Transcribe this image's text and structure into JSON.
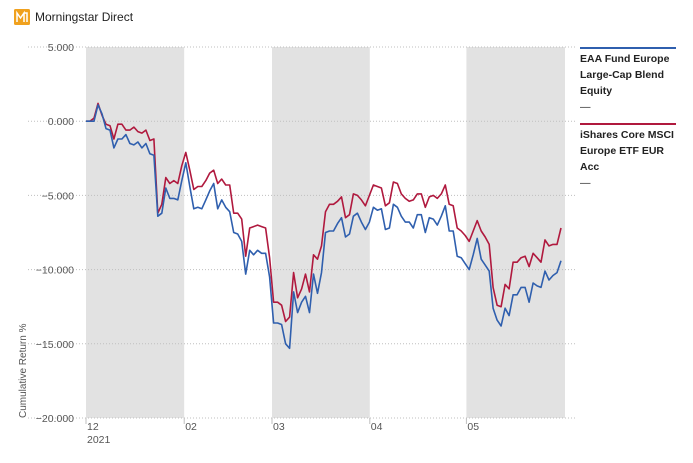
{
  "app": {
    "brand": "Morningstar Direct"
  },
  "colors": {
    "brand_orange": "#f0a11e",
    "series_fund": "#2f5fae",
    "series_etf": "#b0193e",
    "band": "#e2e2e2",
    "grid": "#bfbfbf",
    "text": "#222222",
    "axis_text": "#555555"
  },
  "chart_data": {
    "type": "line",
    "title": "",
    "xlabel": "",
    "ylabel": "Cumulative Return %",
    "ylim": [
      -20,
      5
    ],
    "yticks": [
      5,
      0,
      -5,
      -10,
      -15,
      -20
    ],
    "ytick_labels": [
      "5.000",
      "0.000",
      "−5.000",
      "−10.000",
      "−15.000",
      "−20.000"
    ],
    "xticks": [
      {
        "label": "12",
        "sublabel": "2021",
        "x": 0
      },
      {
        "label": "02",
        "sublabel": "",
        "x": 24.6
      },
      {
        "label": "03",
        "sublabel": "",
        "x": 46.6
      },
      {
        "label": "04",
        "sublabel": "",
        "x": 71.1
      },
      {
        "label": "05",
        "sublabel": "",
        "x": 95.3
      }
    ],
    "xlim": [
      0,
      120
    ],
    "shaded_bands": [
      [
        0,
        24.6
      ],
      [
        46.6,
        71.1
      ],
      [
        95.3,
        120
      ]
    ],
    "legend_position": "right",
    "series": [
      {
        "name": "EAA Fund Europe Large-Cap Blend Equity",
        "color": "#2f5fae",
        "legend_value": "—",
        "x": [
          0,
          1,
          2,
          3,
          4,
          5,
          6,
          7,
          8,
          9,
          10,
          11,
          12,
          13,
          14,
          15,
          16,
          17,
          18,
          19,
          20,
          21,
          22,
          23,
          24,
          25,
          26,
          27,
          28,
          29,
          30,
          31,
          32,
          33,
          34,
          35,
          36,
          37,
          38,
          39,
          40,
          41,
          42,
          43,
          44,
          45,
          46,
          47,
          48,
          49,
          50,
          51,
          52,
          53,
          54,
          55,
          56,
          57,
          58,
          59,
          60,
          61,
          62,
          63,
          64,
          65,
          66,
          67,
          68,
          69,
          70,
          71,
          72,
          73,
          74,
          75,
          76,
          77,
          78,
          79,
          80,
          81,
          82,
          83,
          84,
          85,
          86,
          87,
          88,
          89,
          90,
          91,
          92,
          93,
          94,
          95,
          96,
          97,
          98,
          99,
          100,
          101,
          102,
          103,
          104,
          105,
          106,
          107,
          108,
          109,
          110,
          111,
          112,
          113,
          114,
          115,
          116,
          117,
          118,
          119
        ],
        "values": [
          0,
          0,
          0,
          1.1,
          0.5,
          -0.5,
          -0.6,
          -1.8,
          -1.2,
          -1.2,
          -0.9,
          -1.5,
          -1.6,
          -1.4,
          -1.8,
          -1.5,
          -2.2,
          -2.3,
          -6.4,
          -6.2,
          -4.5,
          -5.2,
          -5.2,
          -5.3,
          -4,
          -2.8,
          -4.4,
          -5.9,
          -5.8,
          -5.9,
          -5.3,
          -4.7,
          -4.2,
          -5.9,
          -5.3,
          -5.8,
          -6.1,
          -7.5,
          -7.6,
          -8.1,
          -10.3,
          -8.7,
          -9.0,
          -8.7,
          -8.9,
          -8.9,
          -10.5,
          -13.6,
          -13.6,
          -13.7,
          -15.0,
          -15.3,
          -11.5,
          -12.9,
          -12.2,
          -11.8,
          -12.9,
          -10.3,
          -11.6,
          -10.2,
          -7.5,
          -7.4,
          -7.4,
          -6.9,
          -6.5,
          -7.8,
          -7.6,
          -6.4,
          -6.2,
          -6.8,
          -7.3,
          -6.8,
          -5.8,
          -6.0,
          -5.9,
          -7.3,
          -7.2,
          -5.6,
          -5.8,
          -6.4,
          -6.8,
          -6.8,
          -7.2,
          -6.3,
          -6.3,
          -7.5,
          -6.5,
          -6.6,
          -7.0,
          -6.4,
          -5.7,
          -7.4,
          -7.4,
          -9.1,
          -9.2,
          -9.6,
          -10.0,
          -9.0,
          -7.9,
          -9.3,
          -9.7,
          -10.1,
          -12.6,
          -13.4,
          -13.8,
          -12.6,
          -13.1,
          -11.7,
          -11.7,
          -11.2,
          -11.2,
          -12.2,
          -10.9,
          -11.1,
          -11.2,
          -10.1,
          -10.7,
          -10.4,
          -10.2,
          -9.4
        ]
      },
      {
        "name": "iShares Core MSCI Europe ETF EUR Acc",
        "color": "#b0193e",
        "legend_value": "—",
        "x": [
          0,
          1,
          2,
          3,
          4,
          5,
          6,
          7,
          8,
          9,
          10,
          11,
          12,
          13,
          14,
          15,
          16,
          17,
          18,
          19,
          20,
          21,
          22,
          23,
          24,
          25,
          26,
          27,
          28,
          29,
          30,
          31,
          32,
          33,
          34,
          35,
          36,
          37,
          38,
          39,
          40,
          41,
          42,
          43,
          44,
          45,
          46,
          47,
          48,
          49,
          50,
          51,
          52,
          53,
          54,
          55,
          56,
          57,
          58,
          59,
          60,
          61,
          62,
          63,
          64,
          65,
          66,
          67,
          68,
          69,
          70,
          71,
          72,
          73,
          74,
          75,
          76,
          77,
          78,
          79,
          80,
          81,
          82,
          83,
          84,
          85,
          86,
          87,
          88,
          89,
          90,
          91,
          92,
          93,
          94,
          95,
          96,
          97,
          98,
          99,
          100,
          101,
          102,
          103,
          104,
          105,
          106,
          107,
          108,
          109,
          110,
          111,
          112,
          113,
          114,
          115,
          116,
          117,
          118,
          119
        ],
        "values": [
          0,
          0,
          0.2,
          1.2,
          0.4,
          -0.2,
          -0.3,
          -1.2,
          -0.2,
          -0.2,
          -0.6,
          -0.6,
          -0.4,
          -0.7,
          -0.8,
          -0.6,
          -1.3,
          -1.2,
          -6.2,
          -5.6,
          -3.8,
          -4.2,
          -4.0,
          -4.2,
          -3.0,
          -2.1,
          -3.3,
          -4.6,
          -4.4,
          -4.4,
          -4.0,
          -3.5,
          -3.3,
          -4.2,
          -3.9,
          -4.3,
          -4.3,
          -6.2,
          -6.2,
          -6.6,
          -9.1,
          -7.2,
          -7.1,
          -7.0,
          -7.1,
          -7.2,
          -9.2,
          -12.2,
          -12.2,
          -12.4,
          -13.5,
          -13.2,
          -10.2,
          -11.9,
          -11.3,
          -10.3,
          -11.5,
          -9.0,
          -9.3,
          -8.4,
          -6.1,
          -5.6,
          -5.6,
          -5.4,
          -5.1,
          -6.5,
          -6.3,
          -4.9,
          -5.0,
          -5.3,
          -5.7,
          -5.0,
          -4.3,
          -4.4,
          -4.5,
          -5.7,
          -5.5,
          -4.1,
          -4.2,
          -4.9,
          -5.2,
          -5.4,
          -5.3,
          -4.9,
          -4.9,
          -5.8,
          -5.1,
          -5.0,
          -5.2,
          -4.9,
          -4.3,
          -5.6,
          -5.7,
          -7.2,
          -7.4,
          -7.7,
          -8.1,
          -7.4,
          -6.7,
          -7.4,
          -7.8,
          -8.3,
          -11.2,
          -12.4,
          -12.5,
          -11.0,
          -11.3,
          -9.5,
          -9.5,
          -9.2,
          -9.1,
          -9.8,
          -8.9,
          -9.2,
          -9.5,
          -8.0,
          -8.4,
          -8.3,
          -8.3,
          -7.2
        ]
      }
    ]
  }
}
